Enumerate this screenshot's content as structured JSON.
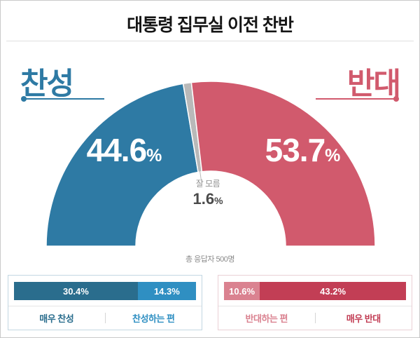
{
  "chart_data": {
    "type": "pie",
    "variant": "semicircle-donut",
    "title": "대통령 집무실 이전 찬반",
    "unit": "%",
    "sample_note": "총 응답자 500명",
    "segments": [
      {
        "label": "찬성",
        "value": 44.6,
        "color": "#2e7aa4"
      },
      {
        "label": "잘 모름",
        "value": 1.6,
        "color": "#b9b9b9"
      },
      {
        "label": "반대",
        "value": 53.7,
        "color": "#d15a6d"
      }
    ],
    "breakdown": [
      {
        "group": "찬성",
        "border_color": "#c3d7e2",
        "items": [
          {
            "label": "매우 찬성",
            "value": 30.4,
            "color": "#2a6d8d"
          },
          {
            "label": "찬성하는 편",
            "value": 14.3,
            "color": "#2f8fc2"
          }
        ]
      },
      {
        "group": "반대",
        "border_color": "#ead0d5",
        "items": [
          {
            "label": "반대하는 편",
            "value": 10.6,
            "color": "#da8290"
          },
          {
            "label": "매우 반대",
            "value": 43.2,
            "color": "#c23e55"
          }
        ]
      }
    ]
  }
}
